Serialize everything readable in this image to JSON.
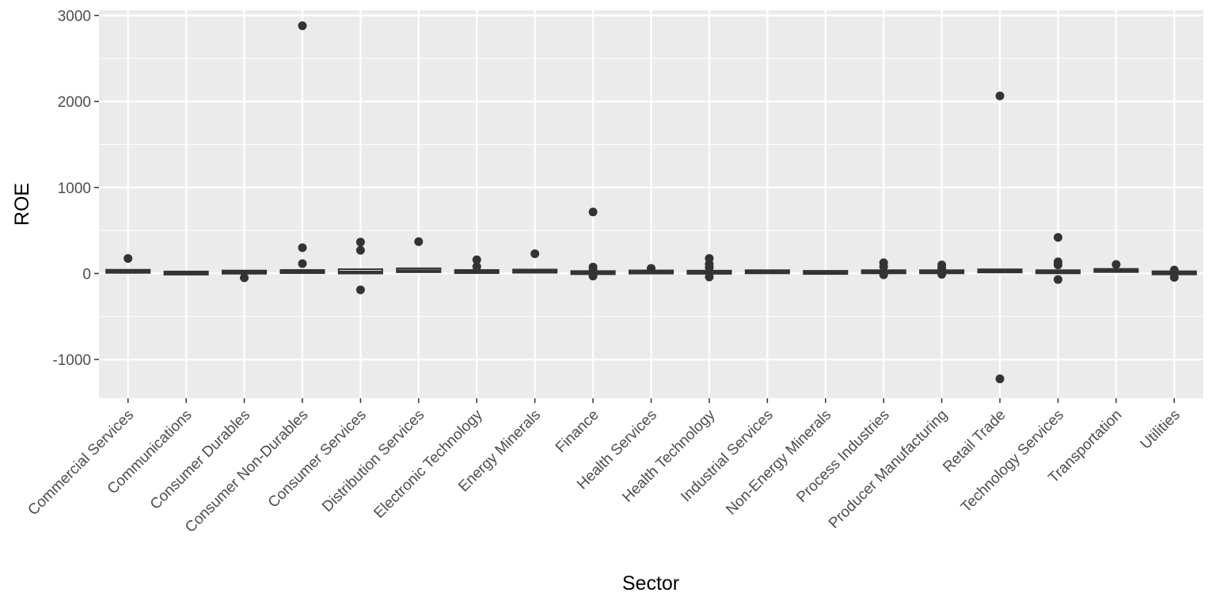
{
  "chart_data": {
    "type": "boxplot",
    "xlabel": "Sector",
    "ylabel": "ROE",
    "ylim": [
      -1450,
      3060
    ],
    "y_ticks": [
      -1000,
      0,
      1000,
      2000,
      3000
    ],
    "y_tick_labels": [
      "-1000",
      "0",
      "1000",
      "2000",
      "3000"
    ],
    "grid": true,
    "colors": {
      "panel_background": "#ebebeb",
      "grid_major": "#ffffff",
      "box": "#333333",
      "outlier": "#333333",
      "tick_label": "#4d4d4d",
      "axis_title": "#000000"
    },
    "categories": [
      "Commercial Services",
      "Communications",
      "Consumer Durables",
      "Consumer Non-Durables",
      "Consumer Services",
      "Distribution Services",
      "Electronic Technology",
      "Energy Minerals",
      "Finance",
      "Health Services",
      "Health Technology",
      "Industrial Services",
      "Non-Energy Minerals",
      "Process Industries",
      "Producer Manufacturing",
      "Retail Trade",
      "Technology Services",
      "Transportation",
      "Utilities"
    ],
    "boxes": [
      {
        "q1": 10,
        "median": 25,
        "q3": 40,
        "outliers": [
          175
        ]
      },
      {
        "q1": -5,
        "median": 5,
        "q3": 15,
        "outliers": []
      },
      {
        "q1": 2,
        "median": 15,
        "q3": 30,
        "outliers": [
          -50
        ]
      },
      {
        "q1": 5,
        "median": 20,
        "q3": 40,
        "outliers": [
          2880,
          300,
          115
        ]
      },
      {
        "q1": 0,
        "median": 15,
        "q3": 50,
        "outliers": [
          365,
          270,
          -190
        ]
      },
      {
        "q1": 15,
        "median": 30,
        "q3": 60,
        "outliers": [
          370
        ]
      },
      {
        "q1": 5,
        "median": 20,
        "q3": 40,
        "outliers": [
          160,
          80
        ]
      },
      {
        "q1": 15,
        "median": 25,
        "q3": 40,
        "outliers": [
          230
        ]
      },
      {
        "q1": -5,
        "median": 8,
        "q3": 25,
        "outliers": [
          715,
          75,
          40,
          -30
        ]
      },
      {
        "q1": 5,
        "median": 15,
        "q3": 30,
        "outliers": [
          60
        ]
      },
      {
        "q1": 0,
        "median": 12,
        "q3": 30,
        "outliers": [
          175,
          110,
          70,
          -40
        ]
      },
      {
        "q1": 10,
        "median": 20,
        "q3": 30,
        "outliers": []
      },
      {
        "q1": 5,
        "median": 10,
        "q3": 20,
        "outliers": []
      },
      {
        "q1": 5,
        "median": 18,
        "q3": 35,
        "outliers": [
          125,
          80,
          -15
        ]
      },
      {
        "q1": 5,
        "median": 15,
        "q3": 35,
        "outliers": [
          100,
          60,
          -10
        ]
      },
      {
        "q1": 15,
        "median": 30,
        "q3": 45,
        "outliers": [
          2065,
          -1225
        ]
      },
      {
        "q1": 5,
        "median": 18,
        "q3": 35,
        "outliers": [
          420,
          135,
          100,
          -70
        ]
      },
      {
        "q1": 20,
        "median": 35,
        "q3": 50,
        "outliers": [
          105
        ]
      },
      {
        "q1": -5,
        "median": 5,
        "q3": 20,
        "outliers": [
          40,
          -45
        ]
      }
    ]
  }
}
